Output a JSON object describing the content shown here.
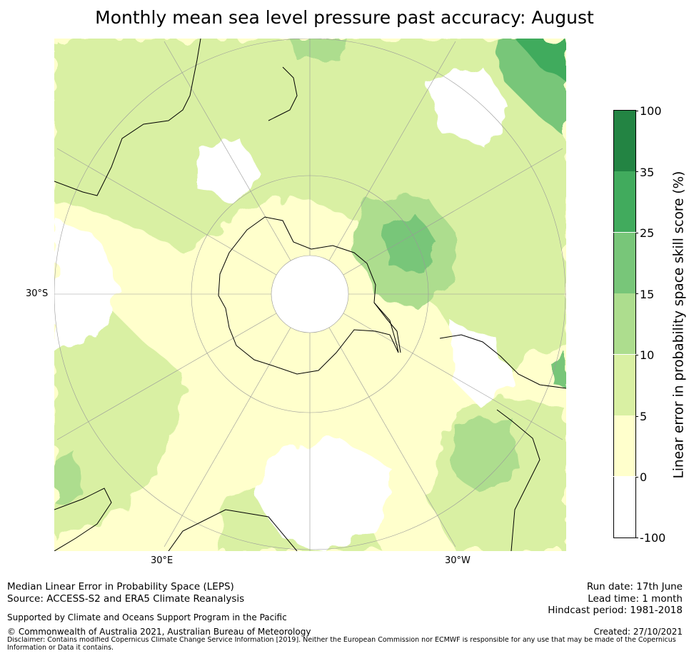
{
  "title": "Monthly mean sea level pressure past accuracy: August",
  "map": {
    "projection": "south-polar-stereographic",
    "lat_labels": [
      "30°S"
    ],
    "lon_labels": [
      "30°E",
      "30°W"
    ],
    "colors": {
      "ocean_white": "#ffffff",
      "coast": "#000000",
      "grid": "#999999"
    }
  },
  "colorbar": {
    "label": "Linear error in probability space skill score (%)",
    "ticks": [
      "100",
      "35",
      "25",
      "15",
      "10",
      "5",
      "0",
      "-100"
    ],
    "bins": [
      {
        "from": "-100",
        "to": "0",
        "color": "#ffffff"
      },
      {
        "from": "0",
        "to": "5",
        "color": "#ffffcc"
      },
      {
        "from": "5",
        "to": "10",
        "color": "#d9f0a3"
      },
      {
        "from": "10",
        "to": "15",
        "color": "#addd8e"
      },
      {
        "from": "15",
        "to": "25",
        "color": "#78c679"
      },
      {
        "from": "25",
        "to": "35",
        "color": "#41ab5d"
      },
      {
        "from": "35",
        "to": "100",
        "color": "#238443"
      }
    ]
  },
  "footer": {
    "method": "Median Linear Error in Probability Space (LEPS)",
    "source": "Source: ACCESS-S2 and ERA5 Climate Reanalysis",
    "support": "Supported by Climate and Oceans Support Program in the Pacific",
    "copyright": "© Commonwealth of Australia 2021, Australian Bureau of Meteorology",
    "disclaimer_line1": "Disclaimer: Contains modified Copernicus Climate Change Service Information [2019]. Neither the European Commission nor ECMWF is responsible for any use that may be made of the Copernicus",
    "disclaimer_line2": "Information or Data it contains.",
    "run_date": "Run date: 17th June",
    "lead_time": "Lead time: 1 month",
    "hindcast": "Hindcast period: 1981-2018",
    "created": "Created: 27/10/2021"
  }
}
